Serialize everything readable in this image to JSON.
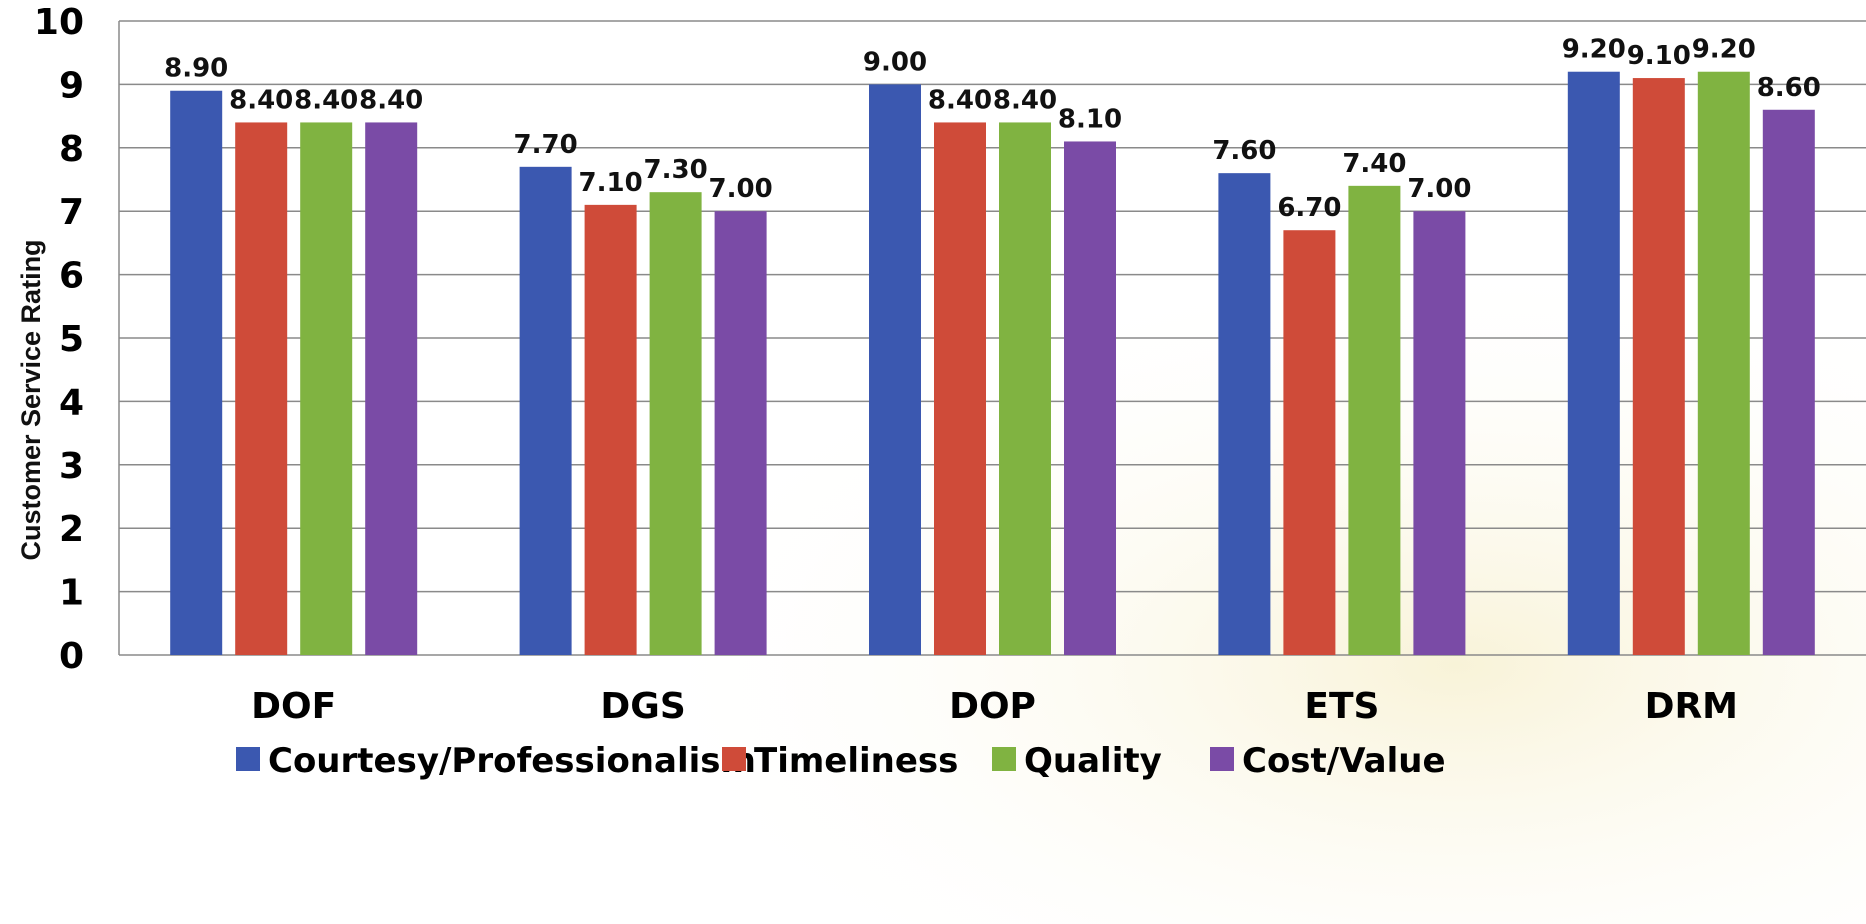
{
  "chart_data": {
    "type": "bar",
    "title": "",
    "xlabel": "",
    "ylabel": "Customer Service Rating",
    "ylim": [
      0,
      10
    ],
    "yticks": [
      0,
      1,
      2,
      3,
      4,
      5,
      6,
      7,
      8,
      9,
      10
    ],
    "grid": true,
    "legend_position": "bottom",
    "categories": [
      "DOF",
      "DGS",
      "DOP",
      "ETS",
      "DRM"
    ],
    "series": [
      {
        "name": "Courtesy/Professionalism",
        "color": "#3b58b0",
        "values": [
          8.9,
          7.7,
          9.0,
          7.6,
          9.2
        ],
        "labels": [
          "8.90",
          "7.70",
          "9.00",
          "7.60",
          "9.20"
        ]
      },
      {
        "name": "Timeliness",
        "color": "#cf4b39",
        "values": [
          8.4,
          7.1,
          8.4,
          6.7,
          9.1
        ],
        "labels": [
          "8.40",
          "7.10",
          "8.40",
          "6.70",
          "9.10"
        ]
      },
      {
        "name": "Quality",
        "color": "#80b341",
        "values": [
          8.4,
          7.3,
          8.4,
          7.4,
          9.2
        ],
        "labels": [
          "8.40",
          "7.30",
          "8.40",
          "7.40",
          "9.20"
        ]
      },
      {
        "name": "Cost/Value",
        "color": "#7a4ba6",
        "values": [
          8.4,
          7.0,
          8.1,
          7.0,
          8.6
        ],
        "labels": [
          "8.40",
          "7.00",
          "8.10",
          "7.00",
          "8.60"
        ]
      }
    ]
  }
}
